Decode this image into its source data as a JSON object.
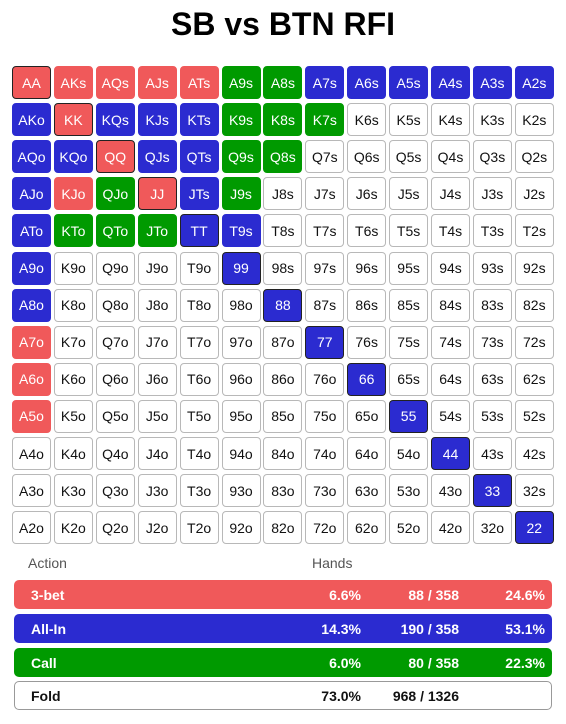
{
  "title": "SB vs BTN RFI",
  "colors": {
    "threebet": "#f0595a",
    "allin": "#2b2bd0",
    "call": "#009a00",
    "fold": "#ffffff"
  },
  "chart_data": {
    "type": "table",
    "ranks": [
      "A",
      "K",
      "Q",
      "J",
      "T",
      "9",
      "8",
      "7",
      "6",
      "5",
      "4",
      "3",
      "2"
    ],
    "cells": [
      [
        {
          "t": "AA",
          "a": "threebet"
        },
        {
          "t": "AKs",
          "a": "threebet"
        },
        {
          "t": "AQs",
          "a": "threebet"
        },
        {
          "t": "AJs",
          "a": "threebet"
        },
        {
          "t": "ATs",
          "a": "threebet"
        },
        {
          "t": "A9s",
          "a": "call"
        },
        {
          "t": "A8s",
          "a": "call"
        },
        {
          "t": "A7s",
          "a": "allin"
        },
        {
          "t": "A6s",
          "a": "allin"
        },
        {
          "t": "A5s",
          "a": "allin"
        },
        {
          "t": "A4s",
          "a": "allin"
        },
        {
          "t": "A3s",
          "a": "allin"
        },
        {
          "t": "A2s",
          "a": "allin"
        }
      ],
      [
        {
          "t": "AKo",
          "a": "allin"
        },
        {
          "t": "KK",
          "a": "threebet"
        },
        {
          "t": "KQs",
          "a": "allin"
        },
        {
          "t": "KJs",
          "a": "allin"
        },
        {
          "t": "KTs",
          "a": "allin"
        },
        {
          "t": "K9s",
          "a": "call"
        },
        {
          "t": "K8s",
          "a": "call"
        },
        {
          "t": "K7s",
          "a": "call"
        },
        {
          "t": "K6s",
          "a": "fold"
        },
        {
          "t": "K5s",
          "a": "fold"
        },
        {
          "t": "K4s",
          "a": "fold"
        },
        {
          "t": "K3s",
          "a": "fold"
        },
        {
          "t": "K2s",
          "a": "fold"
        }
      ],
      [
        {
          "t": "AQo",
          "a": "allin"
        },
        {
          "t": "KQo",
          "a": "allin"
        },
        {
          "t": "QQ",
          "a": "threebet"
        },
        {
          "t": "QJs",
          "a": "allin"
        },
        {
          "t": "QTs",
          "a": "allin"
        },
        {
          "t": "Q9s",
          "a": "call"
        },
        {
          "t": "Q8s",
          "a": "call"
        },
        {
          "t": "Q7s",
          "a": "fold"
        },
        {
          "t": "Q6s",
          "a": "fold"
        },
        {
          "t": "Q5s",
          "a": "fold"
        },
        {
          "t": "Q4s",
          "a": "fold"
        },
        {
          "t": "Q3s",
          "a": "fold"
        },
        {
          "t": "Q2s",
          "a": "fold"
        }
      ],
      [
        {
          "t": "AJo",
          "a": "allin"
        },
        {
          "t": "KJo",
          "a": "threebet"
        },
        {
          "t": "QJo",
          "a": "call"
        },
        {
          "t": "JJ",
          "a": "threebet"
        },
        {
          "t": "JTs",
          "a": "allin"
        },
        {
          "t": "J9s",
          "a": "call"
        },
        {
          "t": "J8s",
          "a": "fold"
        },
        {
          "t": "J7s",
          "a": "fold"
        },
        {
          "t": "J6s",
          "a": "fold"
        },
        {
          "t": "J5s",
          "a": "fold"
        },
        {
          "t": "J4s",
          "a": "fold"
        },
        {
          "t": "J3s",
          "a": "fold"
        },
        {
          "t": "J2s",
          "a": "fold"
        }
      ],
      [
        {
          "t": "ATo",
          "a": "allin"
        },
        {
          "t": "KTo",
          "a": "call"
        },
        {
          "t": "QTo",
          "a": "call"
        },
        {
          "t": "JTo",
          "a": "call"
        },
        {
          "t": "TT",
          "a": "allin"
        },
        {
          "t": "T9s",
          "a": "allin"
        },
        {
          "t": "T8s",
          "a": "fold"
        },
        {
          "t": "T7s",
          "a": "fold"
        },
        {
          "t": "T6s",
          "a": "fold"
        },
        {
          "t": "T5s",
          "a": "fold"
        },
        {
          "t": "T4s",
          "a": "fold"
        },
        {
          "t": "T3s",
          "a": "fold"
        },
        {
          "t": "T2s",
          "a": "fold"
        }
      ],
      [
        {
          "t": "A9o",
          "a": "allin"
        },
        {
          "t": "K9o",
          "a": "fold"
        },
        {
          "t": "Q9o",
          "a": "fold"
        },
        {
          "t": "J9o",
          "a": "fold"
        },
        {
          "t": "T9o",
          "a": "fold"
        },
        {
          "t": "99",
          "a": "allin"
        },
        {
          "t": "98s",
          "a": "fold"
        },
        {
          "t": "97s",
          "a": "fold"
        },
        {
          "t": "96s",
          "a": "fold"
        },
        {
          "t": "95s",
          "a": "fold"
        },
        {
          "t": "94s",
          "a": "fold"
        },
        {
          "t": "93s",
          "a": "fold"
        },
        {
          "t": "92s",
          "a": "fold"
        }
      ],
      [
        {
          "t": "A8o",
          "a": "allin"
        },
        {
          "t": "K8o",
          "a": "fold"
        },
        {
          "t": "Q8o",
          "a": "fold"
        },
        {
          "t": "J8o",
          "a": "fold"
        },
        {
          "t": "T8o",
          "a": "fold"
        },
        {
          "t": "98o",
          "a": "fold"
        },
        {
          "t": "88",
          "a": "allin"
        },
        {
          "t": "87s",
          "a": "fold"
        },
        {
          "t": "86s",
          "a": "fold"
        },
        {
          "t": "85s",
          "a": "fold"
        },
        {
          "t": "84s",
          "a": "fold"
        },
        {
          "t": "83s",
          "a": "fold"
        },
        {
          "t": "82s",
          "a": "fold"
        }
      ],
      [
        {
          "t": "A7o",
          "a": "threebet"
        },
        {
          "t": "K7o",
          "a": "fold"
        },
        {
          "t": "Q7o",
          "a": "fold"
        },
        {
          "t": "J7o",
          "a": "fold"
        },
        {
          "t": "T7o",
          "a": "fold"
        },
        {
          "t": "97o",
          "a": "fold"
        },
        {
          "t": "87o",
          "a": "fold"
        },
        {
          "t": "77",
          "a": "allin"
        },
        {
          "t": "76s",
          "a": "fold"
        },
        {
          "t": "75s",
          "a": "fold"
        },
        {
          "t": "74s",
          "a": "fold"
        },
        {
          "t": "73s",
          "a": "fold"
        },
        {
          "t": "72s",
          "a": "fold"
        }
      ],
      [
        {
          "t": "A6o",
          "a": "threebet"
        },
        {
          "t": "K6o",
          "a": "fold"
        },
        {
          "t": "Q6o",
          "a": "fold"
        },
        {
          "t": "J6o",
          "a": "fold"
        },
        {
          "t": "T6o",
          "a": "fold"
        },
        {
          "t": "96o",
          "a": "fold"
        },
        {
          "t": "86o",
          "a": "fold"
        },
        {
          "t": "76o",
          "a": "fold"
        },
        {
          "t": "66",
          "a": "allin"
        },
        {
          "t": "65s",
          "a": "fold"
        },
        {
          "t": "64s",
          "a": "fold"
        },
        {
          "t": "63s",
          "a": "fold"
        },
        {
          "t": "62s",
          "a": "fold"
        }
      ],
      [
        {
          "t": "A5o",
          "a": "threebet"
        },
        {
          "t": "K5o",
          "a": "fold"
        },
        {
          "t": "Q5o",
          "a": "fold"
        },
        {
          "t": "J5o",
          "a": "fold"
        },
        {
          "t": "T5o",
          "a": "fold"
        },
        {
          "t": "95o",
          "a": "fold"
        },
        {
          "t": "85o",
          "a": "fold"
        },
        {
          "t": "75o",
          "a": "fold"
        },
        {
          "t": "65o",
          "a": "fold"
        },
        {
          "t": "55",
          "a": "allin"
        },
        {
          "t": "54s",
          "a": "fold"
        },
        {
          "t": "53s",
          "a": "fold"
        },
        {
          "t": "52s",
          "a": "fold"
        }
      ],
      [
        {
          "t": "A4o",
          "a": "fold"
        },
        {
          "t": "K4o",
          "a": "fold"
        },
        {
          "t": "Q4o",
          "a": "fold"
        },
        {
          "t": "J4o",
          "a": "fold"
        },
        {
          "t": "T4o",
          "a": "fold"
        },
        {
          "t": "94o",
          "a": "fold"
        },
        {
          "t": "84o",
          "a": "fold"
        },
        {
          "t": "74o",
          "a": "fold"
        },
        {
          "t": "64o",
          "a": "fold"
        },
        {
          "t": "54o",
          "a": "fold"
        },
        {
          "t": "44",
          "a": "allin"
        },
        {
          "t": "43s",
          "a": "fold"
        },
        {
          "t": "42s",
          "a": "fold"
        }
      ],
      [
        {
          "t": "A3o",
          "a": "fold"
        },
        {
          "t": "K3o",
          "a": "fold"
        },
        {
          "t": "Q3o",
          "a": "fold"
        },
        {
          "t": "J3o",
          "a": "fold"
        },
        {
          "t": "T3o",
          "a": "fold"
        },
        {
          "t": "93o",
          "a": "fold"
        },
        {
          "t": "83o",
          "a": "fold"
        },
        {
          "t": "73o",
          "a": "fold"
        },
        {
          "t": "63o",
          "a": "fold"
        },
        {
          "t": "53o",
          "a": "fold"
        },
        {
          "t": "43o",
          "a": "fold"
        },
        {
          "t": "33",
          "a": "allin"
        },
        {
          "t": "32s",
          "a": "fold"
        }
      ],
      [
        {
          "t": "A2o",
          "a": "fold"
        },
        {
          "t": "K2o",
          "a": "fold"
        },
        {
          "t": "Q2o",
          "a": "fold"
        },
        {
          "t": "J2o",
          "a": "fold"
        },
        {
          "t": "T2o",
          "a": "fold"
        },
        {
          "t": "92o",
          "a": "fold"
        },
        {
          "t": "82o",
          "a": "fold"
        },
        {
          "t": "72o",
          "a": "fold"
        },
        {
          "t": "62o",
          "a": "fold"
        },
        {
          "t": "52o",
          "a": "fold"
        },
        {
          "t": "42o",
          "a": "fold"
        },
        {
          "t": "32o",
          "a": "fold"
        },
        {
          "t": "22",
          "a": "allin"
        }
      ]
    ],
    "legend": {
      "action_header": "Action",
      "hands_header": "Hands",
      "rows": [
        {
          "key": "threebet",
          "label": "3-bet",
          "pct": "6.6%",
          "count": "88 / 358",
          "share": "24.6%"
        },
        {
          "key": "allin",
          "label": "All-In",
          "pct": "14.3%",
          "count": "190 / 358",
          "share": "53.1%"
        },
        {
          "key": "call",
          "label": "Call",
          "pct": "6.0%",
          "count": "80 / 358",
          "share": "22.3%"
        },
        {
          "key": "fold",
          "label": "Fold",
          "pct": "73.0%",
          "count": "968 / 1326",
          "share": ""
        }
      ]
    }
  }
}
